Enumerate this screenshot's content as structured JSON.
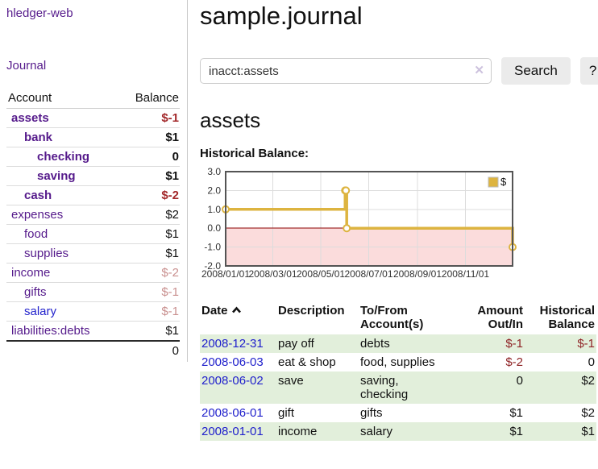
{
  "sidebar": {
    "brand": "hledger-web",
    "nav": {
      "journal": "Journal"
    },
    "table": {
      "headers": {
        "account": "Account",
        "balance": "Balance"
      },
      "accounts": [
        {
          "name": "assets",
          "balance": "$-1",
          "level": 1,
          "bold": true,
          "balance_style": "negative",
          "link_style": "visited"
        },
        {
          "name": "bank",
          "balance": "$1",
          "level": 2,
          "bold": true,
          "balance_style": "normal",
          "link_style": "visited"
        },
        {
          "name": "checking",
          "balance": "0",
          "level": 3,
          "bold": true,
          "balance_style": "normal",
          "link_style": "visited"
        },
        {
          "name": "saving",
          "balance": "$1",
          "level": 3,
          "bold": true,
          "balance_style": "normal",
          "link_style": "visited"
        },
        {
          "name": "cash",
          "balance": "$-2",
          "level": 2,
          "bold": true,
          "balance_style": "negative",
          "link_style": "visited"
        },
        {
          "name": "expenses",
          "balance": "$2",
          "level": 1,
          "bold": false,
          "balance_style": "normal",
          "link_style": "visited"
        },
        {
          "name": "food",
          "balance": "$1",
          "level": 2,
          "bold": false,
          "balance_style": "normal",
          "link_style": "visited"
        },
        {
          "name": "supplies",
          "balance": "$1",
          "level": 2,
          "bold": false,
          "balance_style": "normal",
          "link_style": "visited"
        },
        {
          "name": "income",
          "balance": "$-2",
          "level": 1,
          "bold": false,
          "balance_style": "negative-faded",
          "link_style": "visited"
        },
        {
          "name": "gifts",
          "balance": "$-1",
          "level": 2,
          "bold": false,
          "balance_style": "negative-faded",
          "link_style": "visited"
        },
        {
          "name": "salary",
          "balance": "$-1",
          "level": 2,
          "bold": false,
          "balance_style": "negative-faded",
          "link_style": "unvisited"
        },
        {
          "name": "liabilities:debts",
          "balance": "$1",
          "level": 1,
          "bold": false,
          "balance_style": "normal",
          "link_style": "visited"
        }
      ],
      "total": "0"
    }
  },
  "header": {
    "title": "sample.journal"
  },
  "search": {
    "query": "inacct:assets",
    "clear_icon": "✕",
    "button": "Search",
    "help_button": "?"
  },
  "account_page": {
    "title": "assets",
    "chart_label": "Historical Balance:"
  },
  "chart_data": {
    "type": "line",
    "step": true,
    "title": "Historical Balance",
    "series": [
      {
        "name": "$",
        "color": "#ddb440",
        "points": [
          [
            "2008-01-01",
            1
          ],
          [
            "2008-06-01",
            2
          ],
          [
            "2008-06-02",
            2
          ],
          [
            "2008-06-03",
            0
          ],
          [
            "2008-12-31",
            -1
          ]
        ]
      }
    ],
    "x_ticks": [
      "2008/01/01",
      "2008/03/01",
      "2008/05/01",
      "2008/07/01",
      "2008/09/01",
      "2008/11/01"
    ],
    "y_ticks": [
      "3.0",
      "2.0",
      "1.0",
      "0.0",
      "-1.0",
      "-2.0"
    ],
    "xlim": [
      "2008-01-01",
      "2008-12-31"
    ],
    "ylim": [
      -2,
      3
    ],
    "grid": true,
    "legend": "$",
    "legend_position": "top-right",
    "negative_region_color": "#fbdcdc",
    "zero_line_color": "#8b0000"
  },
  "register": {
    "headers": {
      "date": "Date",
      "description": "Description",
      "accounts": "To/From Account(s)",
      "amount": "Amount Out/In",
      "balance": "Historical Balance"
    },
    "sort": "date-ascending",
    "rows": [
      {
        "date": "2008-12-31",
        "description": "pay off",
        "accounts": "debts",
        "amount": "$-1",
        "balance": "$-1",
        "amount_negative": true,
        "balance_negative": true
      },
      {
        "date": "2008-06-03",
        "description": "eat & shop",
        "accounts": "food, supplies",
        "amount": "$-2",
        "balance": "0",
        "amount_negative": true,
        "balance_negative": false
      },
      {
        "date": "2008-06-02",
        "description": "save",
        "accounts": "saving,\nchecking",
        "amount": "0",
        "balance": "$2",
        "amount_negative": false,
        "balance_negative": false
      },
      {
        "date": "2008-06-01",
        "description": "gift",
        "accounts": "gifts",
        "amount": "$1",
        "balance": "$2",
        "amount_negative": false,
        "balance_negative": false
      },
      {
        "date": "2008-01-01",
        "description": "income",
        "accounts": "salary",
        "amount": "$1",
        "balance": "$1",
        "amount_negative": false,
        "balance_negative": false
      }
    ]
  }
}
